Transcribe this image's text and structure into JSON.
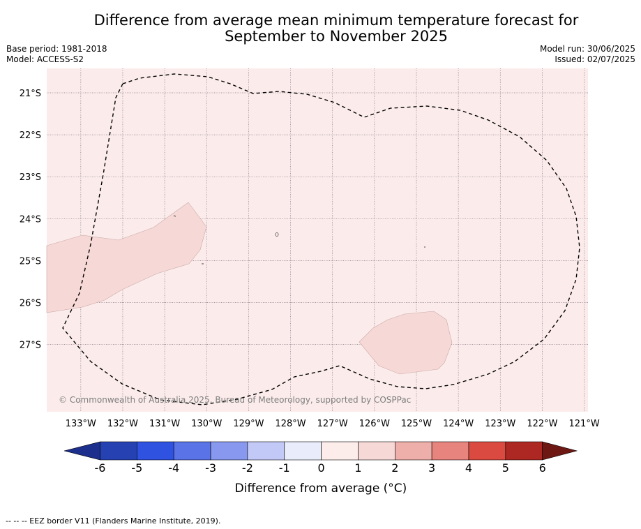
{
  "title": {
    "line1": "Difference from average mean minimum temperature forecast for",
    "line2": "September to November 2025"
  },
  "meta_left": {
    "base_period": "Base period: 1981-2018",
    "model": "Model: ACCESS-S2"
  },
  "meta_right": {
    "model_run": "Model run: 30/06/2025",
    "issued": "Issued: 02/07/2025"
  },
  "map": {
    "background_color": "#fbeceb",
    "anomaly_color": "#f6d9d7",
    "lon_labels": [
      "133°W",
      "132°W",
      "131°W",
      "130°W",
      "129°W",
      "128°W",
      "127°W",
      "126°W",
      "125°W",
      "124°W",
      "123°W",
      "122°W",
      "121°W"
    ],
    "lat_labels": [
      "21°S",
      "22°S",
      "23°S",
      "24°S",
      "25°S",
      "26°S",
      "27°S"
    ],
    "copyright": "© Commonwealth of Australia 2025, Bureau of Meteorology, supported by COSPPac"
  },
  "colorbar": {
    "label": "Difference from average (°C)",
    "ticks": [
      "-6",
      "-5",
      "-4",
      "-3",
      "-2",
      "-1",
      "0",
      "1",
      "2",
      "3",
      "4",
      "5",
      "6"
    ],
    "colors": [
      "#1c2f8c",
      "#2541b2",
      "#2f52e0",
      "#5a73e6",
      "#8798ee",
      "#c2c9f6",
      "#e9ecfb",
      "#fcecea",
      "#f6d9d7",
      "#eeaea9",
      "#e8847e",
      "#da4a40",
      "#ad2822",
      "#6e1814"
    ]
  },
  "footer": "--  --  -- EEZ border V11 (Flanders Marine Institute, 2019)."
}
